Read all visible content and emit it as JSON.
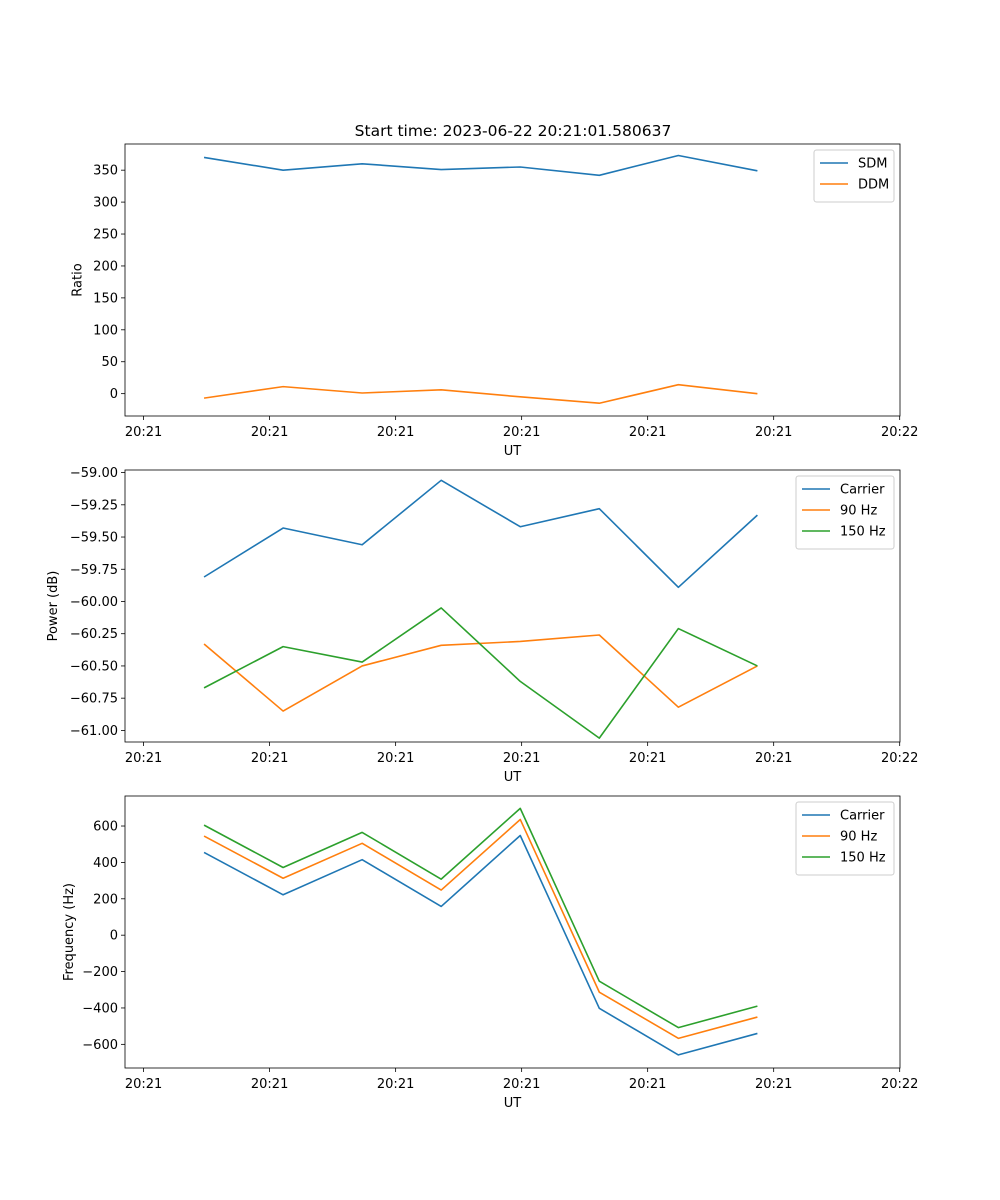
{
  "figure_title": "Start time: 2023-06-22 20:21:01.580637",
  "chart_data": [
    {
      "type": "line",
      "title": "Start time: 2023-06-22 20:21:01.580637",
      "xlabel": "UT",
      "ylabel": "Ratio",
      "x_tick_labels": [
        "20:21",
        "20:21",
        "20:21",
        "20:21",
        "20:21",
        "20:21",
        "20:21"
      ],
      "x_tick_end_label": "20:22",
      "y_ticks": [
        0,
        50,
        100,
        150,
        200,
        250,
        300,
        350
      ],
      "y_tick_labels": [
        "0",
        "50",
        "100",
        "150",
        "200",
        "250",
        "300",
        "350"
      ],
      "ylim": [
        -35,
        391
      ],
      "grid": false,
      "legend_position": "top-right",
      "series": [
        {
          "name": "SDM",
          "color": "#1f77b4",
          "values": [
            370,
            350,
            360,
            351,
            355,
            342,
            373,
            349
          ]
        },
        {
          "name": "DDM",
          "color": "#ff7f0e",
          "values": [
            -7,
            11,
            1,
            6,
            -5,
            -15,
            14,
            0
          ]
        }
      ]
    },
    {
      "type": "line",
      "xlabel": "UT",
      "ylabel": "Power (dB)",
      "x_tick_labels": [
        "20:21",
        "20:21",
        "20:21",
        "20:21",
        "20:21",
        "20:21",
        "20:21"
      ],
      "x_tick_end_label": "20:22",
      "y_ticks": [
        -61.0,
        -60.75,
        -60.5,
        -60.25,
        -60.0,
        -59.75,
        -59.5,
        -59.25,
        -59.0
      ],
      "y_tick_labels": [
        "−61.00",
        "−60.75",
        "−60.50",
        "−60.25",
        "−60.00",
        "−59.75",
        "−59.50",
        "−59.25",
        "−59.00"
      ],
      "ylim": [
        -61.09,
        -58.98
      ],
      "grid": false,
      "legend_position": "top-right",
      "series": [
        {
          "name": "Carrier",
          "color": "#1f77b4",
          "values": [
            -59.81,
            -59.43,
            -59.56,
            -59.06,
            -59.42,
            -59.28,
            -59.89,
            -59.33
          ]
        },
        {
          "name": "90 Hz",
          "color": "#ff7f0e",
          "values": [
            -60.33,
            -60.85,
            -60.5,
            -60.34,
            -60.31,
            -60.26,
            -60.82,
            -60.5
          ]
        },
        {
          "name": "150 Hz",
          "color": "#2ca02c",
          "values": [
            -60.67,
            -60.35,
            -60.47,
            -60.05,
            -60.62,
            -61.06,
            -60.21,
            -60.5
          ]
        }
      ]
    },
    {
      "type": "line",
      "xlabel": "UT",
      "ylabel": "Frequency (Hz)",
      "x_tick_labels": [
        "20:21",
        "20:21",
        "20:21",
        "20:21",
        "20:21",
        "20:21",
        "20:21"
      ],
      "x_tick_end_label": "20:22",
      "y_ticks": [
        -600,
        -400,
        -200,
        0,
        200,
        400,
        600
      ],
      "y_tick_labels": [
        "−600",
        "−400",
        "−200",
        "0",
        "200",
        "400",
        "600"
      ],
      "ylim": [
        -730,
        765
      ],
      "grid": false,
      "legend_position": "top-right",
      "series": [
        {
          "name": "Carrier",
          "color": "#1f77b4",
          "values": [
            455,
            222,
            415,
            158,
            548,
            -402,
            -658,
            -540
          ]
        },
        {
          "name": "90 Hz",
          "color": "#ff7f0e",
          "values": [
            545,
            313,
            505,
            248,
            636,
            -313,
            -567,
            -450
          ]
        },
        {
          "name": "150 Hz",
          "color": "#2ca02c",
          "values": [
            605,
            372,
            565,
            308,
            697,
            -253,
            -508,
            -390
          ]
        }
      ]
    }
  ]
}
